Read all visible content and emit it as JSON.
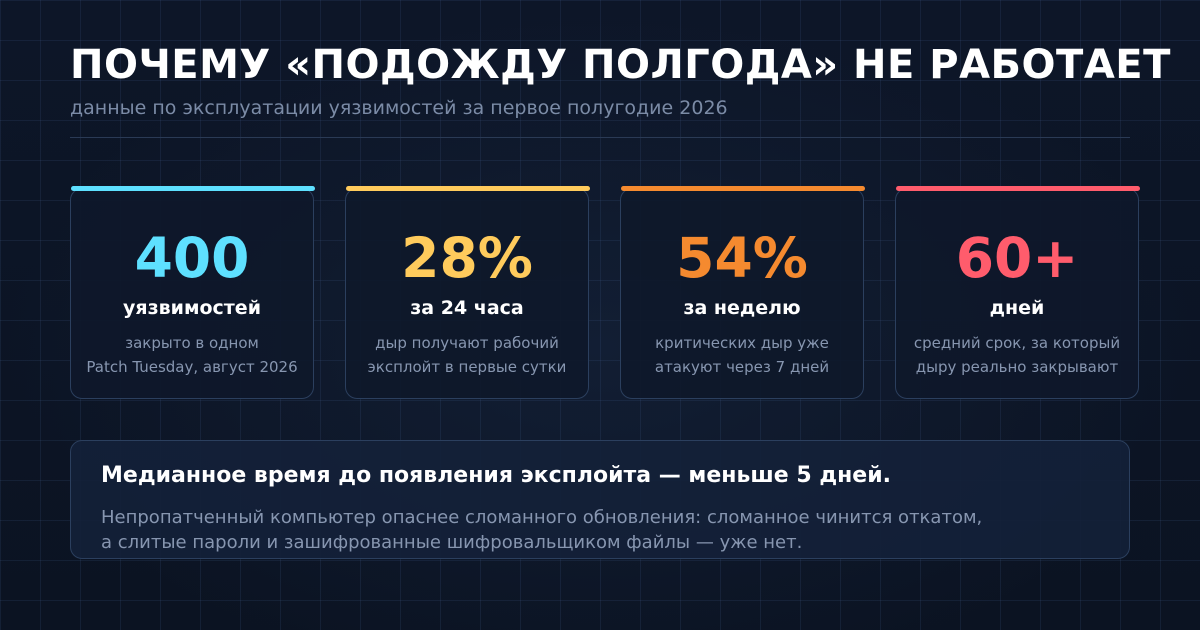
{
  "header": {
    "title": "ПОЧЕМУ «ПОДОЖДУ ПОЛГОДА» НЕ РАБОТАЕТ",
    "subtitle": "данные по эксплуатации уязвимостей за первое полугодие 2026"
  },
  "cards": [
    {
      "value": "400",
      "label": "уязвимостей",
      "desc_lines": [
        "закрыто в одном",
        "Patch Tuesday, август 2026"
      ],
      "accent": "#5ee0ff"
    },
    {
      "value": "28%",
      "label": "за 24 часа",
      "desc_lines": [
        "дыр получают рабочий",
        "эксплойт в первые сутки"
      ],
      "accent": "#ffcb5c"
    },
    {
      "value": "54%",
      "label": "за неделю",
      "desc_lines": [
        "критических дыр уже",
        "атакуют через 7 дней"
      ],
      "accent": "#f58a2f"
    },
    {
      "value": "60+",
      "label": "дней",
      "desc_lines": [
        "средний срок, за который",
        "дыру реально закрывают"
      ],
      "accent": "#ff5c6c"
    }
  ],
  "summary": {
    "headline": "Медианное время до появления эксплойта — меньше 5 дней.",
    "body_lines": [
      "Непропатченный компьютер опаснее сломанного обновления: сломанное чинится откатом,",
      "а слитые пароли и зашифрованные шифровальщиком файлы — уже нет."
    ]
  },
  "colors": {
    "background": "#0c1424",
    "card_border": "#2b3f5e",
    "muted_text": "#8796b0"
  }
}
